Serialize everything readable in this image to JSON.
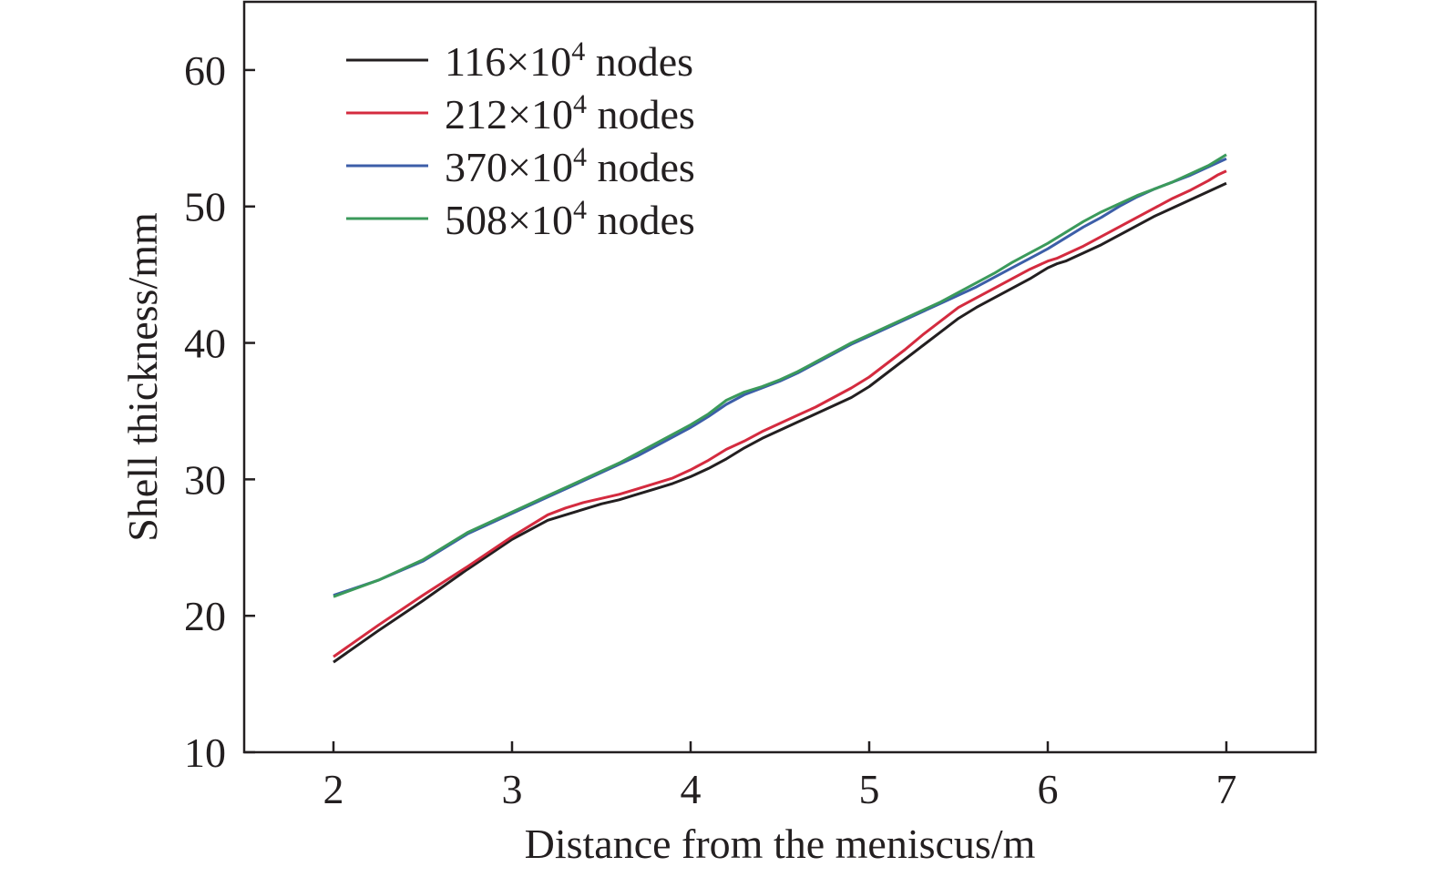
{
  "chart_data": {
    "type": "line",
    "title": "",
    "xlabel": "Distance from the meniscus/m",
    "ylabel": "Shell thickness/mm",
    "xlim": [
      1.5,
      7.5
    ],
    "ylim": [
      10,
      65
    ],
    "xticks": [
      2,
      3,
      4,
      5,
      6,
      7
    ],
    "yticks": [
      10,
      20,
      30,
      40,
      50,
      60
    ],
    "grid": false,
    "legend_position": "top-left",
    "series": [
      {
        "name": "116×10⁴ nodes",
        "legend_base": "116×10",
        "legend_sup": "4",
        "legend_suffix": " nodes",
        "color": "#231f20",
        "x": [
          2.0,
          2.25,
          2.5,
          2.75,
          3.0,
          3.1,
          3.2,
          3.3,
          3.4,
          3.5,
          3.6,
          3.7,
          3.8,
          3.9,
          4.0,
          4.1,
          4.2,
          4.3,
          4.4,
          4.5,
          4.6,
          4.7,
          4.8,
          4.9,
          5.0,
          5.1,
          5.2,
          5.3,
          5.4,
          5.5,
          5.6,
          5.7,
          5.8,
          5.9,
          6.0,
          6.05,
          6.1,
          6.2,
          6.3,
          6.4,
          6.5,
          6.6,
          6.7,
          6.8,
          6.9,
          6.95,
          7.0
        ],
        "y": [
          16.6,
          18.9,
          21.1,
          23.4,
          25.6,
          26.3,
          27.0,
          27.4,
          27.8,
          28.2,
          28.5,
          28.9,
          29.3,
          29.7,
          30.2,
          30.8,
          31.5,
          32.3,
          33.0,
          33.6,
          34.2,
          34.8,
          35.4,
          36.0,
          36.8,
          37.8,
          38.8,
          39.8,
          40.8,
          41.8,
          42.6,
          43.3,
          44.0,
          44.7,
          45.5,
          45.8,
          46.0,
          46.6,
          47.2,
          47.9,
          48.6,
          49.3,
          49.9,
          50.5,
          51.1,
          51.4,
          51.7
        ]
      },
      {
        "name": "212×10⁴ nodes",
        "legend_base": "212×10",
        "legend_sup": "4",
        "legend_suffix": " nodes",
        "color": "#d42b3f",
        "x": [
          2.0,
          2.25,
          2.5,
          2.75,
          3.0,
          3.1,
          3.2,
          3.3,
          3.4,
          3.5,
          3.6,
          3.7,
          3.8,
          3.9,
          4.0,
          4.1,
          4.2,
          4.3,
          4.4,
          4.5,
          4.6,
          4.7,
          4.8,
          4.9,
          5.0,
          5.1,
          5.2,
          5.3,
          5.4,
          5.5,
          5.6,
          5.7,
          5.8,
          5.9,
          6.0,
          6.05,
          6.1,
          6.2,
          6.3,
          6.4,
          6.5,
          6.6,
          6.7,
          6.8,
          6.9,
          6.95,
          7.0
        ],
        "y": [
          17.0,
          19.3,
          21.5,
          23.6,
          25.8,
          26.6,
          27.4,
          27.9,
          28.3,
          28.6,
          28.9,
          29.3,
          29.7,
          30.1,
          30.7,
          31.4,
          32.2,
          32.8,
          33.5,
          34.1,
          34.7,
          35.3,
          36.0,
          36.7,
          37.5,
          38.5,
          39.5,
          40.6,
          41.6,
          42.6,
          43.3,
          44.0,
          44.7,
          45.4,
          46.0,
          46.2,
          46.5,
          47.1,
          47.8,
          48.5,
          49.2,
          49.9,
          50.6,
          51.2,
          51.9,
          52.3,
          52.6
        ]
      },
      {
        "name": "370×10⁴ nodes",
        "legend_base": "370×10",
        "legend_sup": "4",
        "legend_suffix": " nodes",
        "color": "#3c5ea8",
        "x": [
          2.0,
          2.25,
          2.5,
          2.75,
          3.0,
          3.1,
          3.2,
          3.3,
          3.4,
          3.5,
          3.6,
          3.7,
          3.8,
          3.9,
          4.0,
          4.1,
          4.2,
          4.3,
          4.4,
          4.5,
          4.6,
          4.7,
          4.8,
          4.9,
          5.0,
          5.1,
          5.2,
          5.3,
          5.4,
          5.5,
          5.6,
          5.7,
          5.8,
          5.9,
          6.0,
          6.05,
          6.1,
          6.2,
          6.3,
          6.4,
          6.5,
          6.6,
          6.7,
          6.8,
          6.9,
          6.95,
          7.0
        ],
        "y": [
          21.5,
          22.6,
          24.0,
          26.0,
          27.5,
          28.1,
          28.7,
          29.3,
          29.9,
          30.5,
          31.1,
          31.7,
          32.4,
          33.1,
          33.8,
          34.6,
          35.5,
          36.2,
          36.7,
          37.2,
          37.8,
          38.5,
          39.2,
          39.9,
          40.5,
          41.1,
          41.7,
          42.3,
          42.9,
          43.5,
          44.1,
          44.8,
          45.5,
          46.2,
          46.9,
          47.3,
          47.7,
          48.5,
          49.2,
          50.0,
          50.7,
          51.3,
          51.8,
          52.3,
          52.9,
          53.2,
          53.5
        ]
      },
      {
        "name": "508×10⁴ nodes",
        "legend_base": "508×10",
        "legend_sup": "4",
        "legend_suffix": " nodes",
        "color": "#3b9a5b",
        "x": [
          2.0,
          2.25,
          2.5,
          2.75,
          3.0,
          3.1,
          3.2,
          3.3,
          3.4,
          3.5,
          3.6,
          3.7,
          3.8,
          3.9,
          4.0,
          4.1,
          4.2,
          4.3,
          4.4,
          4.5,
          4.6,
          4.7,
          4.8,
          4.9,
          5.0,
          5.1,
          5.2,
          5.3,
          5.4,
          5.5,
          5.6,
          5.7,
          5.8,
          5.9,
          6.0,
          6.05,
          6.1,
          6.2,
          6.3,
          6.4,
          6.5,
          6.6,
          6.7,
          6.8,
          6.9,
          6.95,
          7.0
        ],
        "y": [
          21.4,
          22.6,
          24.1,
          26.1,
          27.6,
          28.2,
          28.8,
          29.4,
          30.0,
          30.6,
          31.2,
          31.9,
          32.6,
          33.3,
          34.0,
          34.8,
          35.8,
          36.4,
          36.8,
          37.3,
          37.9,
          38.6,
          39.3,
          40.0,
          40.6,
          41.2,
          41.8,
          42.4,
          43.0,
          43.7,
          44.4,
          45.1,
          45.9,
          46.6,
          47.3,
          47.7,
          48.1,
          48.9,
          49.6,
          50.2,
          50.8,
          51.3,
          51.8,
          52.4,
          53.0,
          53.4,
          53.8
        ]
      }
    ]
  }
}
